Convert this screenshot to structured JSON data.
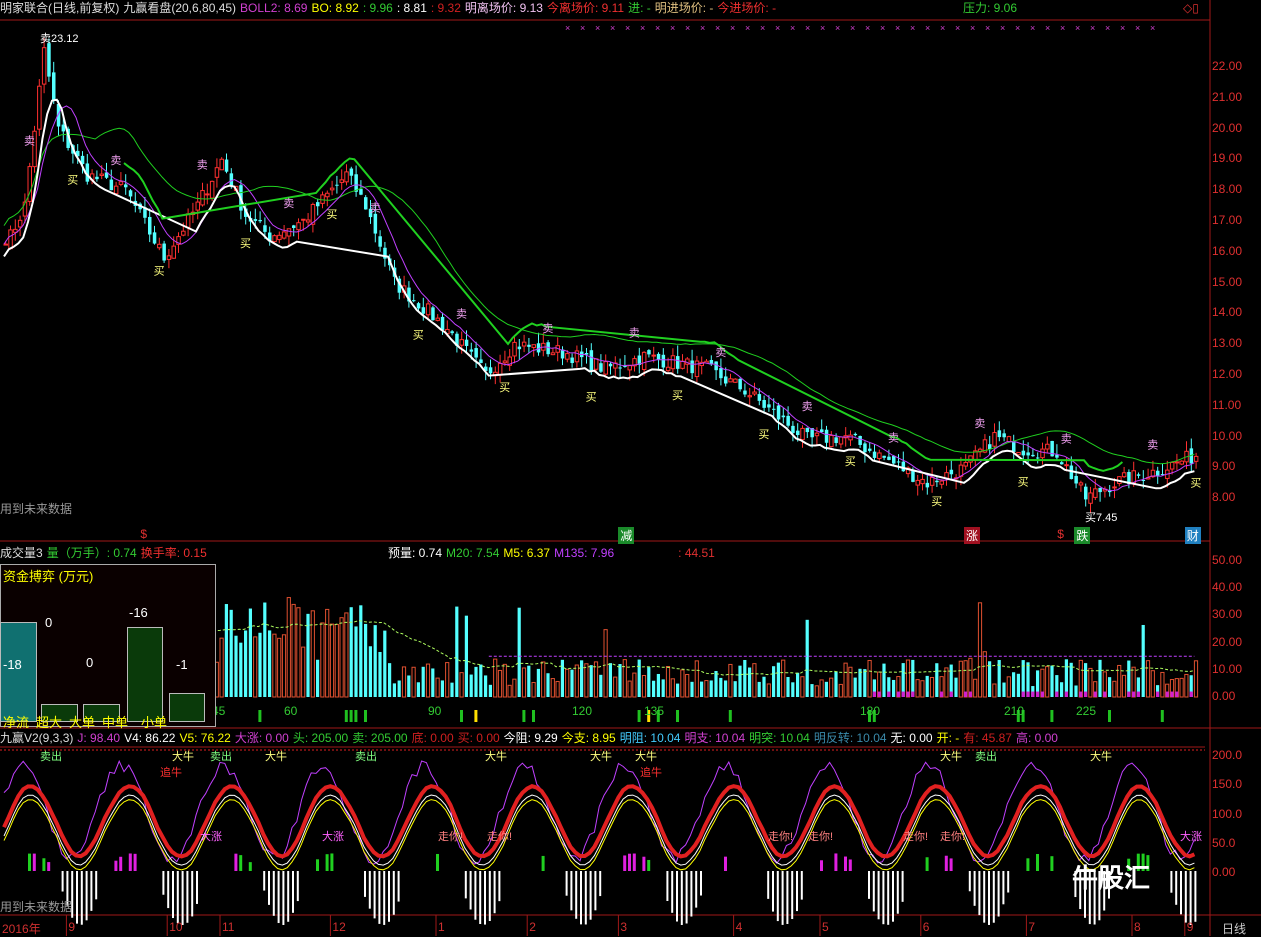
{
  "header": {
    "title": "明家联合(日线,前复权)",
    "indicator": "九赢看盘(20,6,80,45)",
    "boll2": "BOLL2: 8.69",
    "bo": "BO: 8.92",
    "bo2": ": 9.96",
    "bo3": ": 8.81",
    "bo4": ": 9.32",
    "ming_li": "明离场价: 9.13",
    "jin_li": "今离场价: 9.11",
    "jin": "进: -",
    "ming_jin": "明进场价: -",
    "jin_jin": "今进场价: -",
    "pressure": "压力: 9.06"
  },
  "price_panel": {
    "high_label": "卖23.12",
    "low_label": "买7.45",
    "warning": "用到未来数据",
    "axis": [
      "22.00",
      "21.00",
      "20.00",
      "19.00",
      "18.00",
      "17.00",
      "16.00",
      "15.00",
      "14.00",
      "13.00",
      "12.00",
      "11.00",
      "10.00",
      "9.00",
      "8.00"
    ],
    "markers": [
      {
        "text": "$",
        "color": "#e03030"
      },
      {
        "text": "减",
        "color": "#1a8a2a"
      },
      {
        "text": "涨",
        "color": "#a01020"
      },
      {
        "text": "$",
        "color": "#e03030"
      },
      {
        "text": "跌",
        "color": "#1a8a2a"
      },
      {
        "text": "财",
        "color": "#2080c0"
      }
    ]
  },
  "volume_panel": {
    "name": "成交量3",
    "vol": "量（万手）: 0.74",
    "turnover": "换手率: 0.15",
    "pre": "预量: 0.74",
    "m20": "M20: 7.54",
    "m5": "M5: 6.37",
    "m135": "M135: 7.96",
    "extra": ": 44.51",
    "axis": [
      "50.00",
      "40.00",
      "30.00",
      "20.00",
      "10.00",
      "0.00"
    ],
    "counts": [
      "45",
      "60",
      "90",
      "120",
      "135",
      "180",
      "210",
      "225"
    ],
    "fund_flow": {
      "title": "资金搏弈 (万元)",
      "items": [
        {
          "label": "净流",
          "value": "-18"
        },
        {
          "label": "超大",
          "value": "0"
        },
        {
          "label": "大单",
          "value": "0"
        },
        {
          "label": "中单",
          "value": "-16"
        },
        {
          "label": "小单",
          "value": "-1"
        }
      ]
    }
  },
  "indicator_panel": {
    "name": "九赢V2(9,3,3)",
    "j": "J: 98.40",
    "v4": "V4: 86.22",
    "v5": "V5: 76.22",
    "dazhang": "大涨: 0.00",
    "tou": "头: 205.00",
    "mai": "卖: 205.00",
    "di": "底: 0.00",
    "mai2": "买: 0.00",
    "jinzu": "今阻: 9.29",
    "jinzhi": "今支: 8.95",
    "mingzu": "明阻: 10.04",
    "mingzhi": "明支: 10.04",
    "mingtu": "明突: 10.04",
    "mingfz": "明反转: 10.04",
    "wu": "无: 0.00",
    "kai": "开: -",
    "you": "有: 45.87",
    "gao": "高: 0.00",
    "axis": [
      "200.0",
      "150.0",
      "100.0",
      "50.0",
      "0.00"
    ],
    "warning": "用到未来数据",
    "tags": [
      "卖出",
      "大牛",
      "追牛",
      "走你!",
      "大涨"
    ]
  },
  "time_axis": {
    "year": "2016年",
    "months": [
      "9",
      "10",
      "11",
      "12",
      "1",
      "2",
      "3",
      "4",
      "5",
      "6",
      "7",
      "8",
      "9"
    ],
    "period": "日线"
  },
  "watermark": "牛股汇",
  "chart_data": {
    "type": "candlestick",
    "bars": 249,
    "price_path": [
      [
        1,
        16.5
      ],
      [
        4,
        17.5
      ],
      [
        8,
        22.5
      ],
      [
        11,
        20
      ],
      [
        17,
        18.5
      ],
      [
        25,
        18
      ],
      [
        33,
        15.8
      ],
      [
        40,
        17.5
      ],
      [
        45,
        19
      ],
      [
        50,
        17.2
      ],
      [
        55,
        16.5
      ],
      [
        62,
        17
      ],
      [
        71,
        18.5
      ],
      [
        75,
        17.5
      ],
      [
        81,
        15
      ],
      [
        87,
        14.2
      ],
      [
        92,
        13.5
      ],
      [
        100,
        12
      ],
      [
        106,
        13
      ],
      [
        117,
        12.7
      ],
      [
        125,
        12.2
      ],
      [
        133,
        12.6
      ],
      [
        146,
        12.2
      ],
      [
        154,
        11.5
      ],
      [
        167,
        9.9
      ],
      [
        175,
        10
      ],
      [
        183,
        9.3
      ],
      [
        192,
        8.5
      ],
      [
        200,
        9
      ],
      [
        206,
        10
      ],
      [
        212,
        9.6
      ],
      [
        219,
        9.5
      ],
      [
        225,
        8
      ],
      [
        231,
        8.5
      ],
      [
        240,
        8.9
      ],
      [
        248,
        9.4
      ]
    ],
    "month_bar_index": [
      13,
      34,
      45,
      68,
      90,
      109,
      128,
      152,
      170,
      191,
      213,
      235,
      246
    ],
    "marker_bar_index": [
      28,
      128,
      200,
      219,
      223,
      246
    ],
    "ylim": [
      7.5,
      23.5
    ],
    "volume_ylim": [
      0,
      55
    ],
    "indicator_ylim": [
      -80,
      230
    ],
    "colors": {
      "up": "#ff3030",
      "down": "#54ffff",
      "ma_green": "#20d020",
      "ma_purple": "#c040ff",
      "ma_white": "#ffffff"
    }
  }
}
